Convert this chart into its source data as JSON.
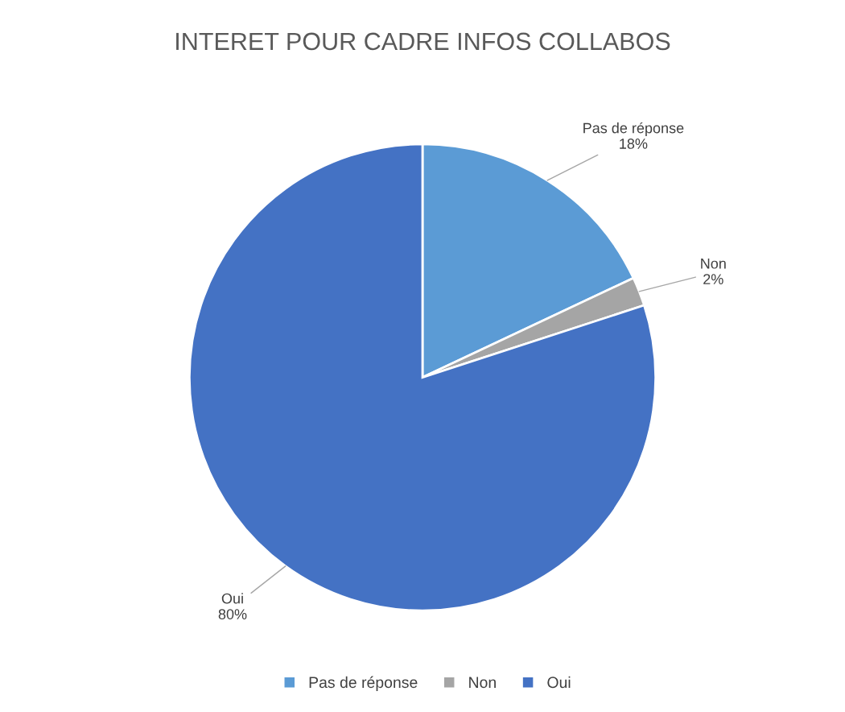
{
  "chart_data": {
    "type": "pie",
    "title": "INTERET POUR CADRE INFOS COLLABOS",
    "categories": [
      "Pas de réponse",
      "Non",
      "Oui"
    ],
    "values": [
      18,
      2,
      80
    ],
    "colors": [
      "#5b9bd5",
      "#a5a5a5",
      "#4472c4"
    ],
    "value_labels": [
      "18%",
      "2%",
      "80%"
    ],
    "legend": "bottom"
  }
}
